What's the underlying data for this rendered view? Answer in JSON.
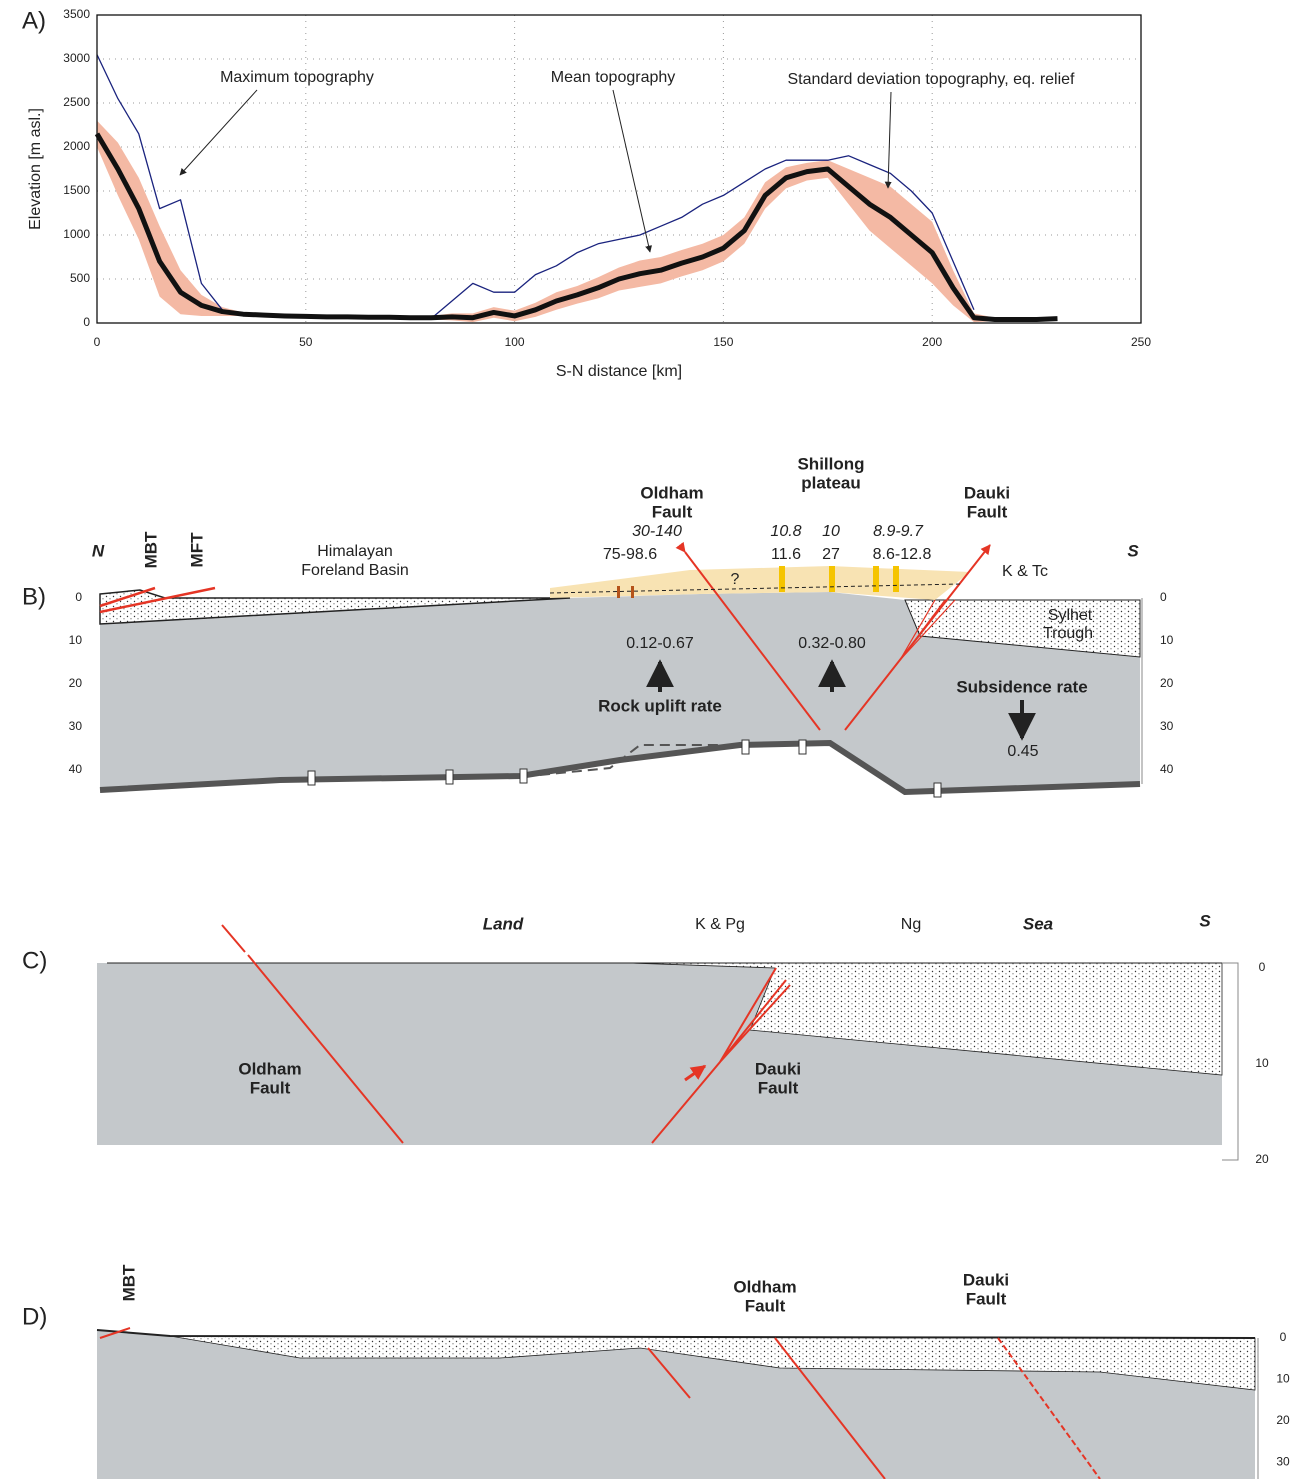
{
  "chart_data": {
    "type": "line",
    "xlabel": "S-N distance [km]",
    "ylabel": "Elevation [m asl.]",
    "x": [
      0,
      5,
      10,
      15,
      20,
      25,
      30,
      35,
      40,
      45,
      50,
      55,
      60,
      65,
      70,
      75,
      80,
      85,
      90,
      95,
      100,
      105,
      110,
      115,
      120,
      125,
      130,
      135,
      140,
      145,
      150,
      155,
      160,
      165,
      170,
      175,
      180,
      185,
      190,
      195,
      200,
      205,
      210,
      215,
      220,
      225,
      230
    ],
    "series": [
      {
        "name": "Maximum topography",
        "color": "#1a237e",
        "values": [
          3050,
          2550,
          2150,
          1300,
          1400,
          450,
          150,
          null,
          null,
          null,
          null,
          null,
          null,
          null,
          null,
          null,
          50,
          250,
          450,
          350,
          350,
          550,
          650,
          800,
          900,
          950,
          1000,
          1100,
          1200,
          1350,
          1450,
          1600,
          1750,
          1850,
          1850,
          1850,
          1900,
          1800,
          1700,
          1500,
          1250,
          700,
          150,
          null,
          null,
          null,
          null
        ]
      },
      {
        "name": "Mean topography",
        "color": "#111111",
        "values": [
          2150,
          1750,
          1300,
          700,
          350,
          200,
          130,
          100,
          90,
          80,
          75,
          70,
          70,
          65,
          65,
          60,
          60,
          70,
          60,
          120,
          80,
          150,
          250,
          320,
          400,
          500,
          560,
          600,
          680,
          750,
          850,
          1050,
          1450,
          1650,
          1720,
          1750,
          1550,
          1350,
          1200,
          1000,
          800,
          400,
          60,
          40,
          40,
          40,
          50
        ]
      },
      {
        "name": "Standard deviation topography, eq. relief",
        "color": "#f4b9a4",
        "values": [
          150,
          300,
          350,
          400,
          250,
          120,
          50,
          20,
          20,
          20,
          20,
          20,
          20,
          20,
          20,
          20,
          20,
          40,
          50,
          60,
          60,
          80,
          100,
          100,
          120,
          130,
          150,
          150,
          150,
          150,
          150,
          150,
          150,
          120,
          100,
          100,
          200,
          300,
          350,
          350,
          350,
          200,
          50,
          20,
          20,
          20,
          20
        ]
      }
    ],
    "xlim": [
      0,
      250
    ],
    "xticks": [
      0,
      50,
      100,
      150,
      200,
      250
    ],
    "ylim": [
      0,
      3500
    ],
    "yticks": [
      0,
      500,
      1000,
      1500,
      2000,
      2500,
      3000,
      3500
    ],
    "grid": true
  },
  "panel_labels": [
    "A)",
    "B)",
    "C)",
    "D)"
  ],
  "panel_b": {
    "north": "N",
    "mbt": "MBT",
    "mft": "MFT",
    "basin": [
      "Himalayan",
      "Foreland Basin"
    ],
    "oldham_fault": [
      "Oldham",
      "Fault"
    ],
    "shillong": [
      "Shillong",
      "plateau"
    ],
    "dauki_fault": [
      "Dauki",
      "Fault"
    ],
    "south": "S",
    "ages_italic": [
      "30-140",
      "10.8",
      "10",
      "8.9-9.7"
    ],
    "ages": [
      "75-98.6",
      "11.6",
      "27",
      "8.6-12.8"
    ],
    "question": "?",
    "k_tc": "K & Tc",
    "sylhet": [
      "Sylhet",
      "Trough"
    ],
    "uplift_rates": [
      "0.12-0.67",
      "0.32-0.80"
    ],
    "uplift_label": "Rock uplift rate",
    "subsidence_label": "Subsidence rate",
    "subsidence": "0.45",
    "depth_ticks": [
      0,
      10,
      20,
      30,
      40
    ]
  },
  "panel_c": {
    "land": "Land",
    "k_pg": "K & Pg",
    "ng": "Ng",
    "sea": "Sea",
    "south": "S",
    "oldham_fault": [
      "Oldham",
      "Fault"
    ],
    "dauki_fault": [
      "Dauki",
      "Fault"
    ],
    "depth_ticks": [
      0,
      10,
      20
    ]
  },
  "panel_d": {
    "mbt": "MBT",
    "oldham_fault": [
      "Oldham",
      "Fault"
    ],
    "dauki_fault": [
      "Dauki",
      "Fault"
    ],
    "depth_ticks": [
      0,
      10,
      20,
      30
    ]
  }
}
